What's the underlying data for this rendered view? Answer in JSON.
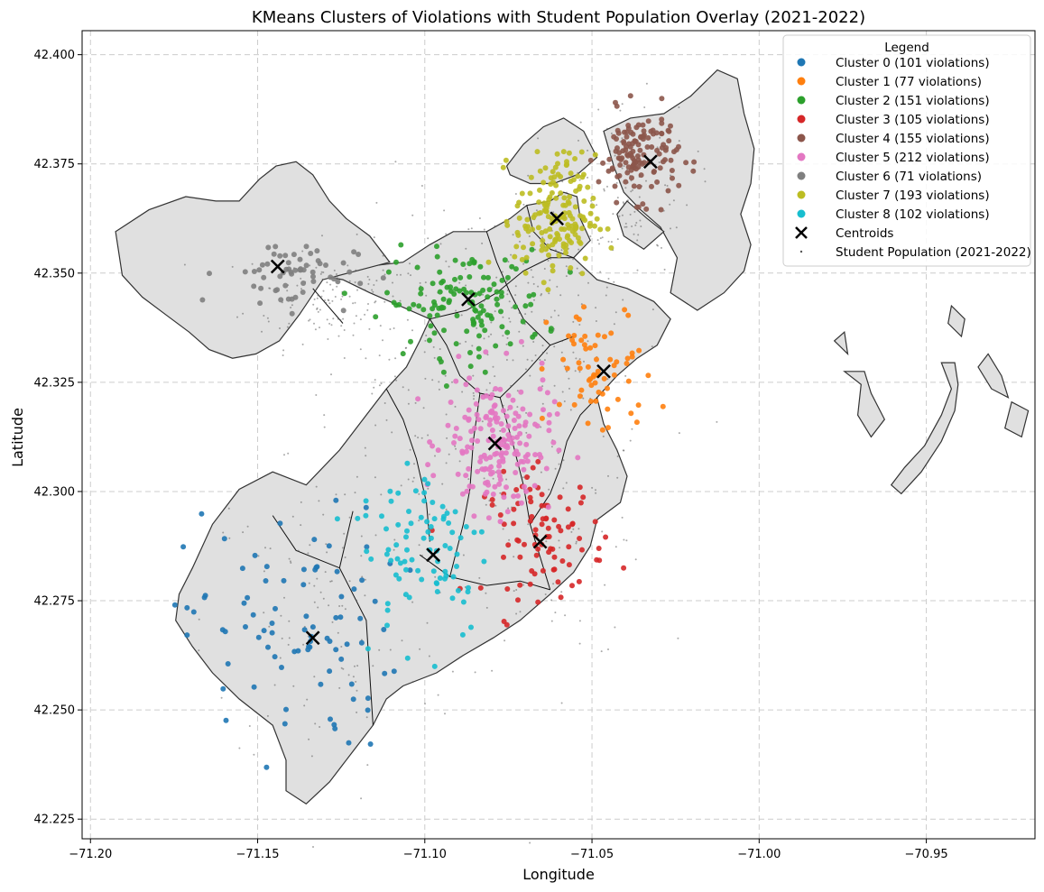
{
  "chart_data": {
    "type": "scatter",
    "title": "KMeans Clusters of Violations with Student Population Overlay (2021-2022)",
    "xlabel": "Longitude",
    "ylabel": "Latitude",
    "xlim": [
      -71.2025,
      -70.9175
    ],
    "ylim": [
      42.2205,
      42.4055
    ],
    "x_ticks": [
      -71.2,
      -71.15,
      -71.1,
      -71.05,
      -71.0,
      -70.95
    ],
    "x_tick_labels": [
      "−71.20",
      "−71.15",
      "−71.10",
      "−71.05",
      "−71.00",
      "−70.95"
    ],
    "y_ticks": [
      42.225,
      42.25,
      42.275,
      42.3,
      42.325,
      42.35,
      42.375,
      42.4
    ],
    "y_tick_labels": [
      "42.225",
      "42.250",
      "42.275",
      "42.300",
      "42.325",
      "42.350",
      "42.375",
      "42.400"
    ],
    "grid": true,
    "legend": {
      "title": "Legend",
      "placement": "top-right",
      "entries": [
        "Cluster 0 (101 violations)",
        "Cluster 1 (77 violations)",
        "Cluster 2 (151 violations)",
        "Cluster 3 (105 violations)",
        "Cluster 4 (155 violations)",
        "Cluster 5 (212 violations)",
        "Cluster 6 (71 violations)",
        "Cluster 7 (193 violations)",
        "Cluster 8 (102 violations)",
        "Centroids",
        "Student Population (2021-2022)"
      ]
    },
    "colors": {
      "clusters": [
        "#1f77b4",
        "#ff7f0e",
        "#2ca02c",
        "#d62728",
        "#8c564b",
        "#e377c2",
        "#7f7f7f",
        "#bcbd22",
        "#17becf"
      ],
      "centroid": "#000000",
      "student": "#555555",
      "land": "#e0e0e0",
      "land_edge": "#333333"
    },
    "clusters": [
      {
        "label": "Cluster 0 (101 violations)",
        "count": 101,
        "center": [
          -71.14,
          42.268
        ],
        "spread": [
          0.016,
          0.014
        ],
        "centroid": [
          -71.1335,
          42.2665
        ]
      },
      {
        "label": "Cluster 1 (77 violations)",
        "count": 77,
        "center": [
          -71.047,
          42.327
        ],
        "spread": [
          0.008,
          0.008
        ],
        "centroid": [
          -71.0465,
          42.3275
        ]
      },
      {
        "label": "Cluster 2 (151 violations)",
        "count": 151,
        "center": [
          -71.088,
          42.343
        ],
        "spread": [
          0.012,
          0.006
        ],
        "centroid": [
          -71.087,
          42.344
        ]
      },
      {
        "label": "Cluster 3 (105 violations)",
        "count": 105,
        "center": [
          -71.064,
          42.29
        ],
        "spread": [
          0.009,
          0.007
        ],
        "centroid": [
          -71.0655,
          42.2885
        ]
      },
      {
        "label": "Cluster 4 (155 violations)",
        "count": 155,
        "center": [
          -71.036,
          42.377
        ],
        "spread": [
          0.006,
          0.005
        ],
        "centroid": [
          -71.0325,
          42.3755
        ]
      },
      {
        "label": "Cluster 5 (212 violations)",
        "count": 212,
        "center": [
          -71.078,
          42.311
        ],
        "spread": [
          0.008,
          0.008
        ],
        "centroid": [
          -71.079,
          42.311
        ]
      },
      {
        "label": "Cluster 6 (71 violations)",
        "count": 71,
        "center": [
          -71.141,
          42.35
        ],
        "spread": [
          0.01,
          0.004
        ],
        "centroid": [
          -71.144,
          42.3515
        ]
      },
      {
        "label": "Cluster 7 (193 violations)",
        "count": 193,
        "center": [
          -71.061,
          42.363
        ],
        "spread": [
          0.006,
          0.007
        ],
        "centroid": [
          -71.0605,
          42.3625
        ]
      },
      {
        "label": "Cluster 8 (102 violations)",
        "count": 102,
        "center": [
          -71.1,
          42.288
        ],
        "spread": [
          0.01,
          0.011
        ],
        "centroid": [
          -71.0975,
          42.2855
        ]
      }
    ],
    "student_population_label": "Student Population (2021-2022)",
    "centroids_label": "Centroids"
  }
}
